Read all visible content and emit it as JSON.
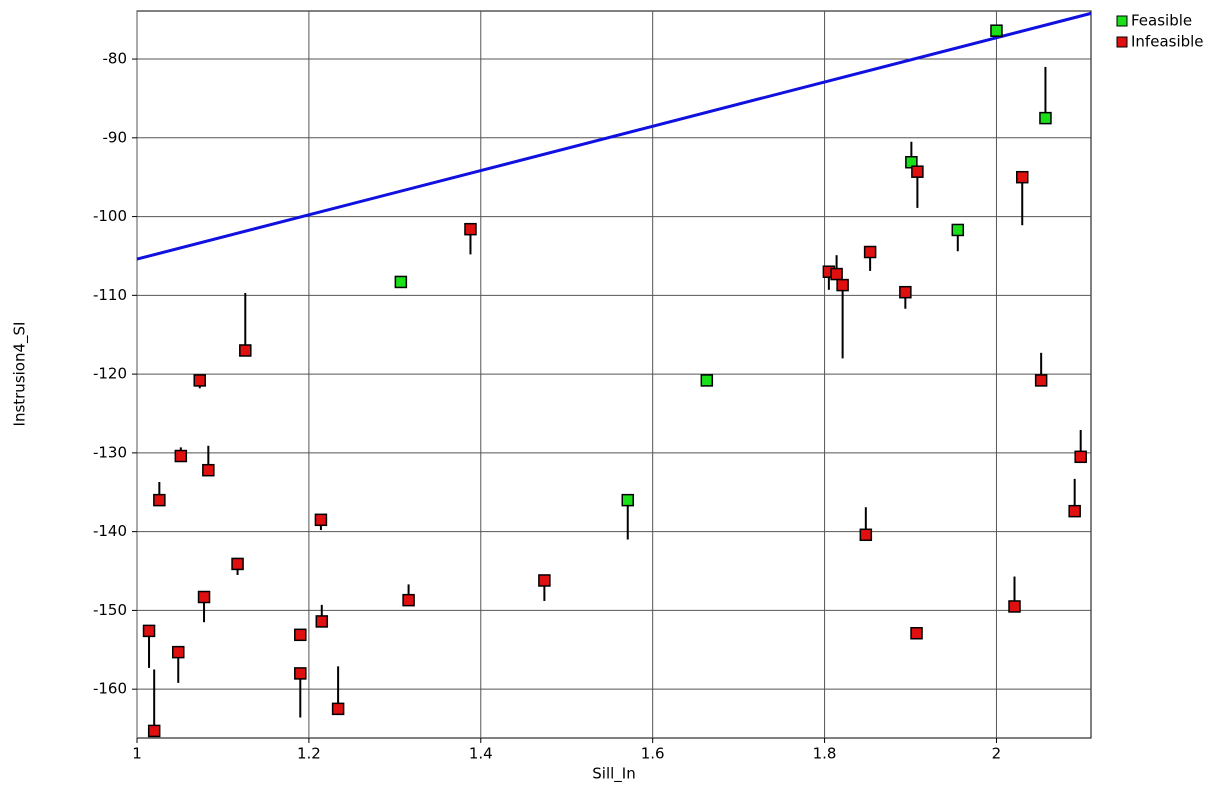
{
  "chart_data": {
    "type": "scatter",
    "x_label": "Sill_In",
    "y_label": "Instrusion4_SI",
    "xlim": [
      1,
      2.11
    ],
    "ylim": [
      -166.2,
      -73.9
    ],
    "xticks": [
      1,
      1.2,
      1.4,
      1.6,
      1.8,
      2
    ],
    "yticks": [
      -80,
      -90,
      -100,
      -110,
      -120,
      -130,
      -140,
      -150,
      -160
    ],
    "grid": true,
    "legend": "top-right",
    "line": {
      "color": "#1010e0",
      "x": [
        1,
        2.11
      ],
      "y": [
        -105.4,
        -74.2
      ]
    },
    "series": [
      {
        "name": "Feasible",
        "color": "#19e019",
        "x": [
          2.0,
          2.057,
          1.901,
          1.955,
          1.307,
          1.663,
          1.571
        ],
        "values": [
          -76.4,
          -87.5,
          -93.1,
          -101.7,
          -108.3,
          -120.8,
          -136.0
        ],
        "whisker_ends": [
          null,
          -81.0,
          -90.5,
          -104.4,
          null,
          null,
          -141.0
        ]
      },
      {
        "name": "Infeasible",
        "color": "#e01010",
        "x": [
          1.388,
          1.126,
          1.073,
          1.026,
          1.051,
          1.083,
          1.014,
          1.02,
          1.048,
          1.078,
          1.117,
          1.19,
          1.19,
          1.214,
          1.215,
          1.234,
          1.316,
          1.474,
          1.805,
          1.814,
          1.821,
          1.853,
          1.894,
          1.908,
          1.848,
          1.907,
          2.03,
          2.052,
          2.098,
          2.091,
          2.021
        ],
        "values": [
          -101.6,
          -117.0,
          -120.8,
          -136.0,
          -130.4,
          -132.2,
          -152.6,
          -165.3,
          -155.3,
          -148.3,
          -144.1,
          -153.1,
          -158.0,
          -138.5,
          -151.4,
          -162.5,
          -148.7,
          -146.2,
          -107.0,
          -107.3,
          -108.7,
          -104.5,
          -109.6,
          -94.3,
          -140.4,
          -152.9,
          -95.0,
          -120.8,
          -130.5,
          -137.4,
          -149.5
        ],
        "whisker_ends": [
          -104.8,
          -109.7,
          -121.8,
          -133.7,
          -129.3,
          -129.1,
          -157.3,
          -157.5,
          -159.2,
          -151.5,
          -145.5,
          null,
          -163.6,
          -139.8,
          -149.3,
          -157.1,
          -146.7,
          -148.8,
          -109.3,
          -104.9,
          -118.0,
          -106.9,
          -111.7,
          -98.9,
          -136.9,
          null,
          -101.1,
          -117.3,
          -127.1,
          -133.3,
          -145.7
        ]
      }
    ]
  }
}
